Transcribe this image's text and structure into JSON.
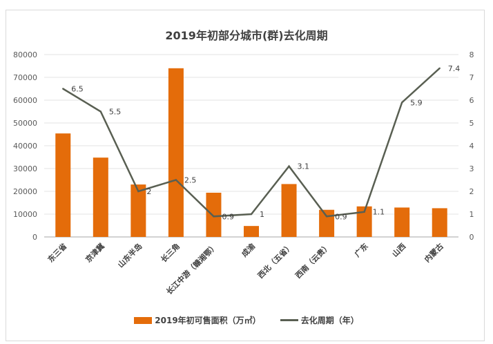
{
  "chart_data": {
    "type": "bar+line",
    "title": "2019年初部分城市(群)去化周期",
    "categories": [
      "东三省",
      "京津冀",
      "山东半岛",
      "长三角",
      "长江中游（赣湘鄂）",
      "成渝",
      "西北（五省）",
      "西南（云贵）",
      "广东",
      "山西",
      "内蒙古"
    ],
    "series": [
      {
        "name": "2019年初可售面积（万㎡）",
        "type": "bar",
        "axis": "left",
        "color": "#e46c0a",
        "values": [
          45400,
          34800,
          23000,
          74000,
          19400,
          4800,
          23200,
          11900,
          13400,
          12900,
          12600
        ]
      },
      {
        "name": "去化周期（年）",
        "type": "line",
        "axis": "right",
        "color": "#595f52",
        "values": [
          6.5,
          5.5,
          2,
          2.5,
          0.9,
          1,
          3.1,
          0.9,
          1.1,
          5.9,
          7.4
        ],
        "data_labels": [
          "6.5",
          "5.5",
          "2",
          "2.5",
          "0.9",
          "1",
          "3.1",
          "0.9",
          "1.1",
          "5.9",
          "7.4"
        ]
      }
    ],
    "y_left": {
      "range": [
        0,
        80000
      ],
      "ticks": [
        "0",
        "10000",
        "20000",
        "30000",
        "40000",
        "50000",
        "60000",
        "70000",
        "80000"
      ]
    },
    "y_right": {
      "range": [
        0,
        8
      ],
      "ticks": [
        "0",
        "1",
        "2",
        "3",
        "4",
        "5",
        "6",
        "7",
        "8"
      ]
    },
    "grid": true,
    "legend": "bottom"
  }
}
